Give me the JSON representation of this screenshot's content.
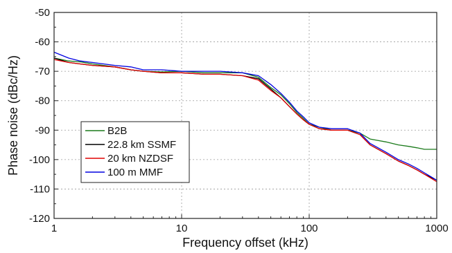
{
  "chart_data": {
    "type": "line",
    "xlabel": "Frequency offset (kHz)",
    "ylabel": "Phase noise (dBc/Hz)",
    "xscale": "log",
    "xlim": [
      1,
      1000
    ],
    "ylim": [
      -120,
      -50
    ],
    "xticks": [
      1,
      10,
      100,
      1000
    ],
    "xtick_labels": [
      "1",
      "10",
      "100",
      "1000"
    ],
    "yticks": [
      -50,
      -60,
      -70,
      -80,
      -90,
      -100,
      -110,
      -120
    ],
    "ytick_labels": [
      "-50",
      "-60",
      "-70",
      "-80",
      "-90",
      "-100",
      "-110",
      "-120"
    ],
    "grid": true,
    "legend_position": "bottom-left",
    "series": [
      {
        "name": "B2B",
        "color": "#1a7a1a",
        "x": [
          1,
          1.3,
          1.6,
          2,
          3,
          4,
          5,
          7,
          10,
          15,
          20,
          30,
          40,
          50,
          60,
          70,
          80,
          90,
          100,
          120,
          150,
          200,
          250,
          300,
          400,
          500,
          600,
          700,
          800,
          1000
        ],
        "y": [
          -65.5,
          -66.5,
          -66.8,
          -67.5,
          -68.5,
          -69.5,
          -70,
          -70.2,
          -70,
          -70.5,
          -70.5,
          -70.5,
          -72,
          -75.5,
          -78,
          -81,
          -84,
          -86,
          -88,
          -89,
          -90,
          -90,
          -91,
          -93,
          -94,
          -95,
          -95.5,
          -96,
          -96.5,
          -96.5
        ]
      },
      {
        "name": "22.8 km SSMF",
        "color": "#000000",
        "x": [
          1,
          1.3,
          1.6,
          2,
          3,
          4,
          5,
          7,
          10,
          15,
          20,
          30,
          40,
          50,
          60,
          70,
          80,
          90,
          100,
          120,
          150,
          200,
          250,
          300,
          400,
          500,
          600,
          700,
          800,
          1000
        ],
        "y": [
          -65.5,
          -67,
          -67.5,
          -68,
          -68.5,
          -69.5,
          -70,
          -70.5,
          -70.5,
          -71,
          -71,
          -71.5,
          -72.5,
          -76,
          -79,
          -82,
          -84.5,
          -86.5,
          -88,
          -89.5,
          -90,
          -90,
          -91.5,
          -95,
          -98,
          -100.5,
          -102,
          -103.5,
          -105,
          -107
        ]
      },
      {
        "name": "20 km NZDSF",
        "color": "#e00000",
        "x": [
          1,
          1.3,
          1.6,
          2,
          3,
          4,
          5,
          7,
          10,
          15,
          20,
          30,
          40,
          50,
          60,
          70,
          80,
          90,
          100,
          120,
          150,
          200,
          250,
          300,
          400,
          500,
          600,
          700,
          800,
          1000
        ],
        "y": [
          -66,
          -67,
          -67.5,
          -68,
          -68.5,
          -69.5,
          -70,
          -70.5,
          -70.5,
          -71,
          -71,
          -71.5,
          -73,
          -76.5,
          -79,
          -82,
          -84.5,
          -86.5,
          -88,
          -89.5,
          -90,
          -90,
          -91.5,
          -95,
          -98,
          -100.5,
          -102,
          -103.5,
          -105,
          -107.5
        ]
      },
      {
        "name": "100 m MMF",
        "color": "#0000e0",
        "x": [
          1,
          1.3,
          1.6,
          2,
          3,
          4,
          5,
          7,
          10,
          15,
          20,
          30,
          40,
          50,
          60,
          70,
          80,
          90,
          100,
          120,
          150,
          200,
          250,
          300,
          400,
          500,
          600,
          700,
          800,
          1000
        ],
        "y": [
          -63.5,
          -65.5,
          -66.5,
          -67,
          -68,
          -68.5,
          -69.5,
          -69.5,
          -70,
          -70,
          -70,
          -70.5,
          -71.5,
          -74.5,
          -77.5,
          -80.5,
          -83.5,
          -85.5,
          -87.5,
          -89,
          -89.5,
          -89.5,
          -91,
          -94.5,
          -97.5,
          -100,
          -101.5,
          -103,
          -104.5,
          -107
        ]
      }
    ]
  }
}
